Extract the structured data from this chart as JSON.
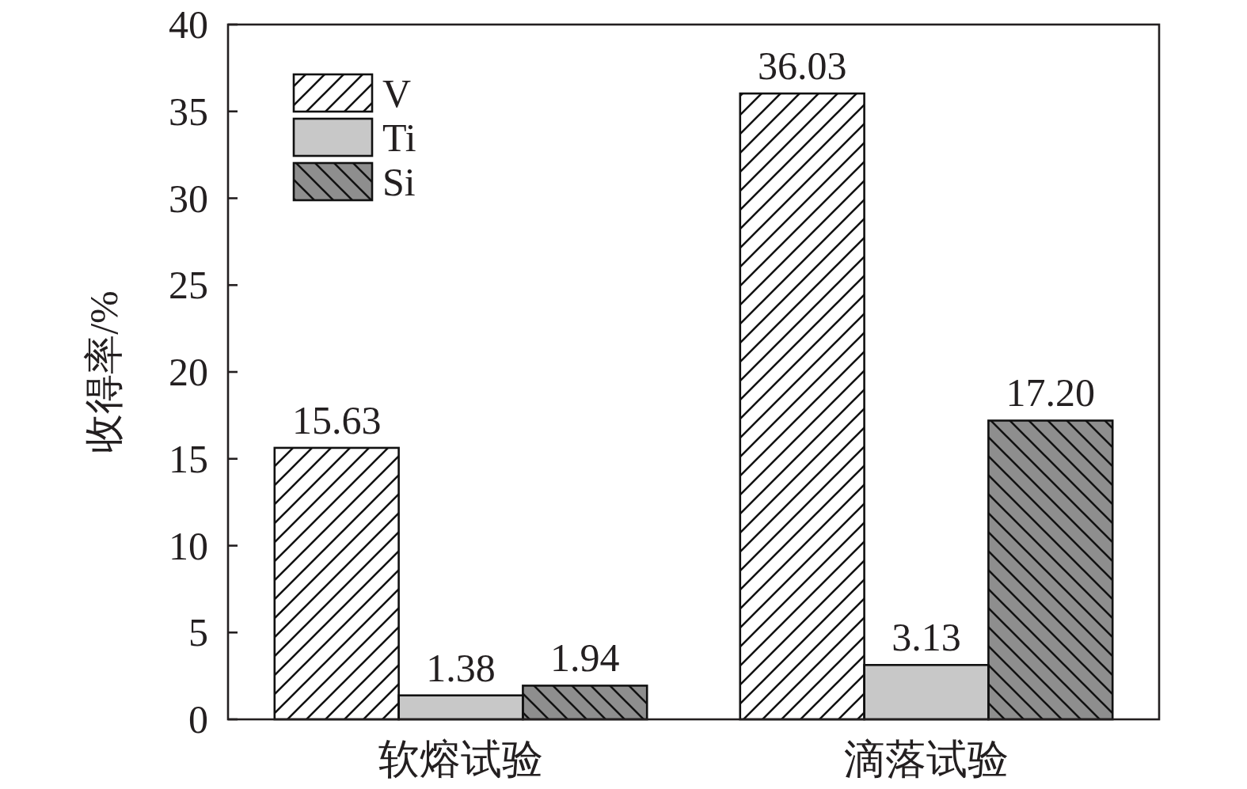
{
  "chart_data": {
    "type": "bar",
    "ylabel": "收得率/%",
    "categories": [
      "软熔试验",
      "滴落试验"
    ],
    "series": [
      {
        "name": "V",
        "color": "#ffffff",
        "values": [
          15.63,
          36.03
        ],
        "value_labels": [
          "15.63",
          "36.03"
        ]
      },
      {
        "name": "Ti",
        "color": "#c8c8c8",
        "values": [
          1.38,
          3.13
        ],
        "value_labels": [
          "1.38",
          "3.13"
        ]
      },
      {
        "name": "Si",
        "color": "#8e8e8e",
        "values": [
          1.94,
          17.2
        ],
        "value_labels": [
          "1.94",
          "17.20"
        ]
      }
    ],
    "ylim": [
      0,
      40
    ],
    "yticks": [
      0,
      5,
      10,
      15,
      20,
      25,
      30,
      35,
      40
    ],
    "legend": "top left"
  }
}
